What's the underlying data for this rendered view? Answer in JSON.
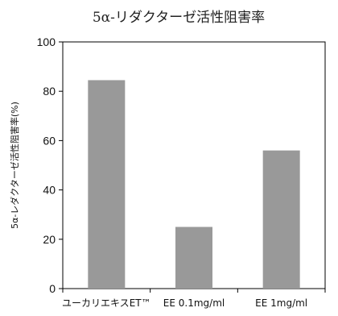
{
  "chart_data": {
    "type": "bar",
    "title": "5α-リダクターゼ活性阻害率",
    "ylabel": "5α-レダクターゼ活性阻害率(%)",
    "xlabel": "",
    "categories": [
      "ユーカリエキスET™",
      "EE 0.1mg/ml",
      "EE 1mg/ml"
    ],
    "values": [
      84.5,
      25,
      56
    ],
    "ylim": [
      0,
      100
    ],
    "yticks": [
      0,
      20,
      40,
      60,
      80,
      100
    ],
    "grid": false,
    "bar_color": "#999999"
  }
}
